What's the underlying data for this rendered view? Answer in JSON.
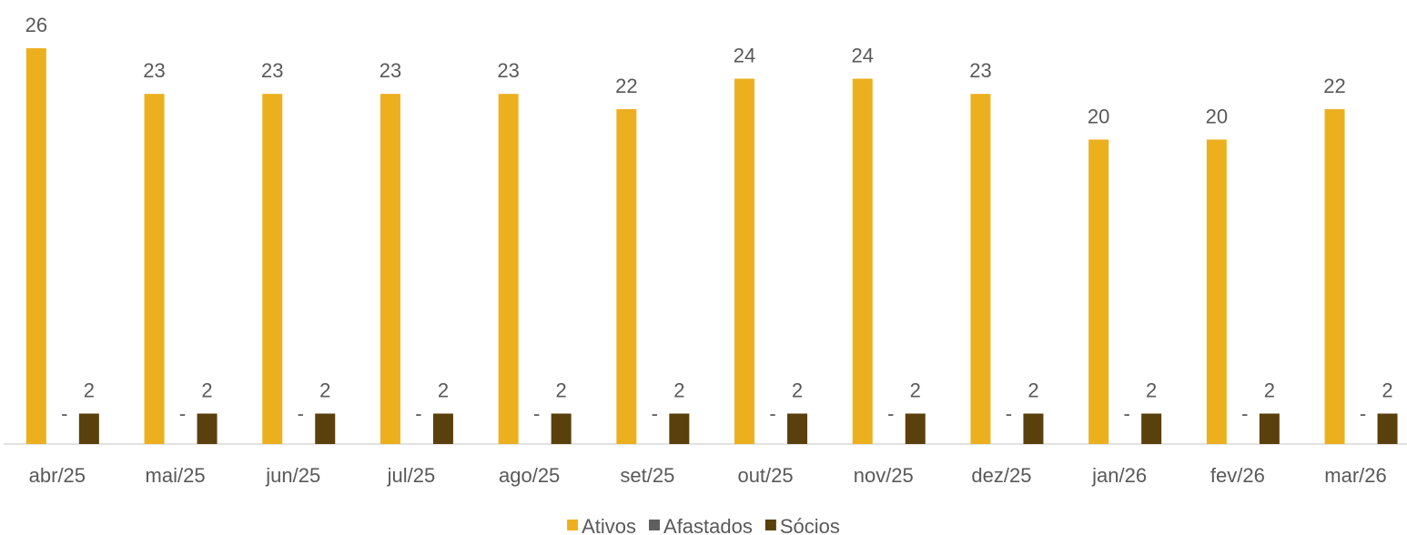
{
  "chart_data": {
    "type": "bar",
    "categories": [
      "abr/25",
      "mai/25",
      "jun/25",
      "jul/25",
      "ago/25",
      "set/25",
      "out/25",
      "nov/25",
      "dez/25",
      "jan/26",
      "fev/26",
      "mar/26"
    ],
    "series": [
      {
        "name": "Ativos",
        "color": "#ecb01f",
        "values": [
          26,
          23,
          23,
          23,
          23,
          22,
          24,
          24,
          23,
          20,
          20,
          22
        ]
      },
      {
        "name": "Afastados",
        "color": "#5f5f5f",
        "values": [
          0,
          0,
          0,
          0,
          0,
          0,
          0,
          0,
          0,
          0,
          0,
          0
        ],
        "value_labels": [
          "-",
          "-",
          "-",
          "-",
          "-",
          "-",
          "-",
          "-",
          "-",
          "-",
          "-",
          "-"
        ]
      },
      {
        "name": "Sócios",
        "color": "#5a400c",
        "values": [
          2,
          2,
          2,
          2,
          2,
          2,
          2,
          2,
          2,
          2,
          2,
          2
        ]
      }
    ],
    "ylim": [
      0,
      26
    ],
    "legend": "bottom"
  }
}
